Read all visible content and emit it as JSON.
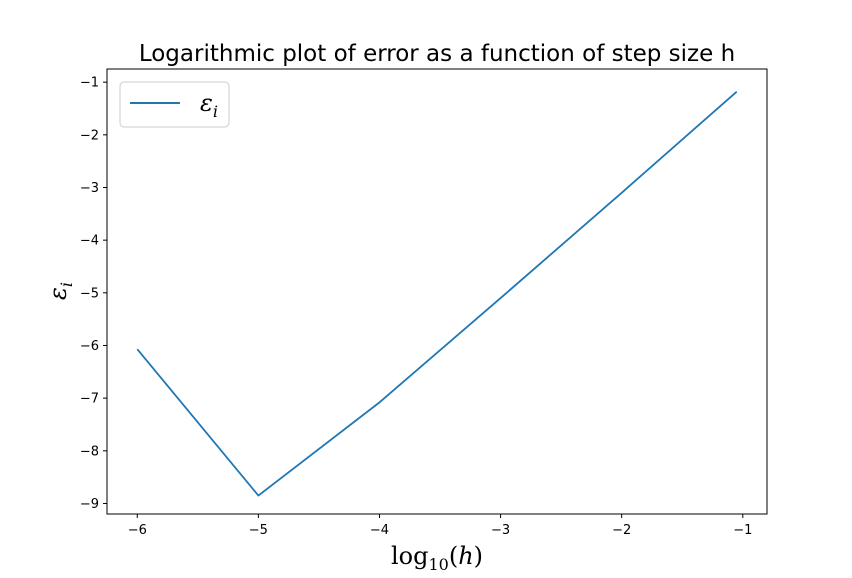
{
  "chart_data": {
    "type": "line",
    "title": "Logarithmic plot of error as a function of step size h",
    "xlabel": "log10(h)",
    "ylabel": "εi",
    "xlim": [
      -6.25,
      -0.8
    ],
    "ylim": [
      -9.2,
      -0.75
    ],
    "xticks": [
      -6,
      -5,
      -4,
      -3,
      -2,
      -1
    ],
    "yticks": [
      -9,
      -8,
      -7,
      -6,
      -5,
      -4,
      -3,
      -2,
      -1
    ],
    "grid": false,
    "legend_position": "upper-left",
    "series": [
      {
        "name": "εi",
        "color": "#1f77b4",
        "x": [
          -6,
          -5,
          -4,
          -3,
          -2,
          -1.05
        ],
        "y": [
          -6.07,
          -8.85,
          -7.08,
          -5.1,
          -3.1,
          -1.18
        ]
      }
    ]
  }
}
